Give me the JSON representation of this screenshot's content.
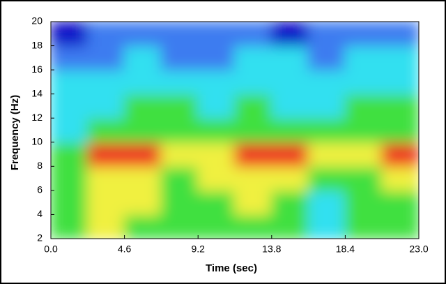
{
  "chart_data": {
    "type": "heatmap",
    "xlabel": "Time (sec)",
    "ylabel": "Frequency (Hz)",
    "xlim": [
      0,
      23
    ],
    "ylim": [
      2,
      20
    ],
    "xticks": [
      {
        "value": 0,
        "label": "0.0"
      },
      4.6,
      9.2,
      13.8,
      18.4,
      {
        "value": 23,
        "label": "23.0"
      }
    ],
    "yticks": [
      2,
      4,
      6,
      8,
      10,
      12,
      14,
      16,
      18,
      20
    ],
    "colors": [
      "#1010c8",
      "#3c7cf0",
      "#30e0f0",
      "#40e040",
      "#f0f040",
      "#f03020"
    ],
    "z": [
      [
        3,
        4,
        3,
        3,
        3,
        3,
        3,
        2,
        3,
        3
      ],
      [
        3,
        4,
        4,
        3,
        3,
        4,
        3,
        2,
        3,
        3
      ],
      [
        3,
        4,
        4,
        3,
        4,
        4,
        4,
        3,
        3,
        4
      ],
      [
        3,
        5,
        5,
        4,
        4,
        5,
        5,
        4,
        4,
        5
      ],
      [
        2,
        3,
        3,
        3,
        3,
        3,
        3,
        3,
        3,
        3
      ],
      [
        2,
        2,
        3,
        3,
        2,
        3,
        2,
        2,
        3,
        3
      ],
      [
        2,
        2,
        2,
        2,
        2,
        2,
        2,
        2,
        2,
        2
      ],
      [
        1,
        1,
        2,
        1,
        1,
        2,
        2,
        1,
        2,
        2
      ],
      [
        0,
        1,
        1,
        1,
        1,
        1,
        0,
        1,
        1,
        1
      ]
    ]
  }
}
